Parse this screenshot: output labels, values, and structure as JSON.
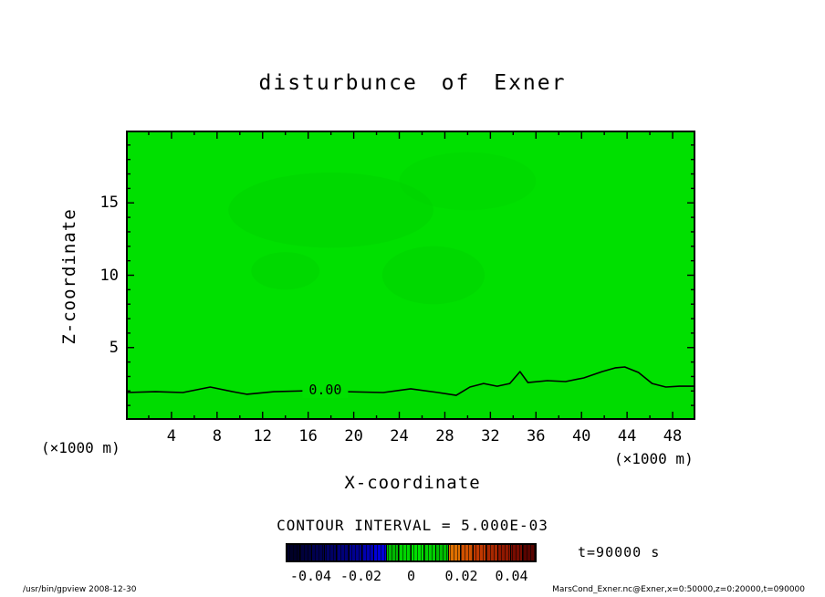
{
  "title": "disturbunce of Exner",
  "annotations": {
    "time_label": "t=90000 s",
    "contour_interval_label": "CONTOUR INTERVAL = 5.000E-03",
    "zero_contour_label": "0.00"
  },
  "footer": {
    "left": "/usr/bin/gpview  2008-12-30",
    "right": "MarsCond_Exner.nc@Exner,x=0:50000,z=0:20000,t=090000"
  },
  "chart_data": {
    "type": "heatmap",
    "subtype": "filled-contour-2d-section",
    "title": "disturbunce of Exner",
    "xlabel": "X-coordinate",
    "ylabel": "Z-coordinate",
    "x_unit_label": "(×1000 m)",
    "y_unit_label": "(×1000 m)",
    "xlim": [
      0,
      50
    ],
    "ylim": [
      0,
      20
    ],
    "x_ticks": [
      4,
      8,
      12,
      16,
      20,
      24,
      28,
      32,
      36,
      40,
      44,
      48
    ],
    "y_ticks": [
      5,
      10,
      15
    ],
    "grid": false,
    "contour_interval": 0.005,
    "field_note": "Exner function disturbance near zero everywhere; whole section fills the 0-level green tone band",
    "zero_contour_label_position": {
      "x": 17.5,
      "z": 2.08
    },
    "zero_contour_points": [
      [
        0.0,
        1.89
      ],
      [
        2.6,
        1.95
      ],
      [
        5.0,
        1.89
      ],
      [
        7.4,
        2.27
      ],
      [
        9.4,
        1.95
      ],
      [
        10.6,
        1.77
      ],
      [
        13.0,
        1.95
      ],
      [
        16.2,
        2.02
      ],
      [
        19.4,
        1.95
      ],
      [
        22.6,
        1.89
      ],
      [
        25.0,
        2.15
      ],
      [
        27.4,
        1.89
      ],
      [
        29.0,
        1.7
      ],
      [
        30.2,
        2.27
      ],
      [
        31.4,
        2.52
      ],
      [
        32.6,
        2.33
      ],
      [
        33.7,
        2.52
      ],
      [
        34.6,
        3.34
      ],
      [
        35.3,
        2.58
      ],
      [
        37.0,
        2.71
      ],
      [
        38.6,
        2.65
      ],
      [
        40.2,
        2.9
      ],
      [
        41.8,
        3.34
      ],
      [
        43.0,
        3.6
      ],
      [
        43.8,
        3.66
      ],
      [
        45.0,
        3.28
      ],
      [
        46.2,
        2.52
      ],
      [
        47.4,
        2.27
      ],
      [
        48.6,
        2.33
      ],
      [
        50.0,
        2.33
      ]
    ],
    "shade_regions": [
      {
        "x": 18,
        "z": 14.5,
        "rx": 9,
        "ry": 2.6,
        "opacity": 0.45
      },
      {
        "x": 14,
        "z": 10.3,
        "rx": 3,
        "ry": 1.3,
        "opacity": 0.45
      },
      {
        "x": 27,
        "z": 10.0,
        "rx": 4.5,
        "ry": 2.0,
        "opacity": 0.4
      },
      {
        "x": 30,
        "z": 16.5,
        "rx": 6,
        "ry": 2.0,
        "opacity": 0.35
      }
    ],
    "colors": {
      "fill_base": "#00e000",
      "shade": "#00d000",
      "below_zero_shade": "#00d800",
      "contour_line": "#000000"
    },
    "colorbar": {
      "min": -0.05,
      "max": 0.05,
      "ticks": [
        {
          "value": -0.04,
          "label": "-0.04"
        },
        {
          "value": -0.02,
          "label": "-0.02"
        },
        {
          "value": 0,
          "label": "0"
        },
        {
          "value": 0.02,
          "label": "0.02"
        },
        {
          "value": 0.04,
          "label": "0.04"
        }
      ],
      "colors": [
        "#000028",
        "#00003c",
        "#000050",
        "#000064",
        "#000078",
        "#000090",
        "#0000b0",
        "#0000d8",
        "#00b800",
        "#00d400",
        "#00e000",
        "#00d000",
        "#00bc00",
        "#e07000",
        "#d05000",
        "#c03800",
        "#a82800",
        "#901800",
        "#780c00",
        "#580400"
      ]
    }
  }
}
